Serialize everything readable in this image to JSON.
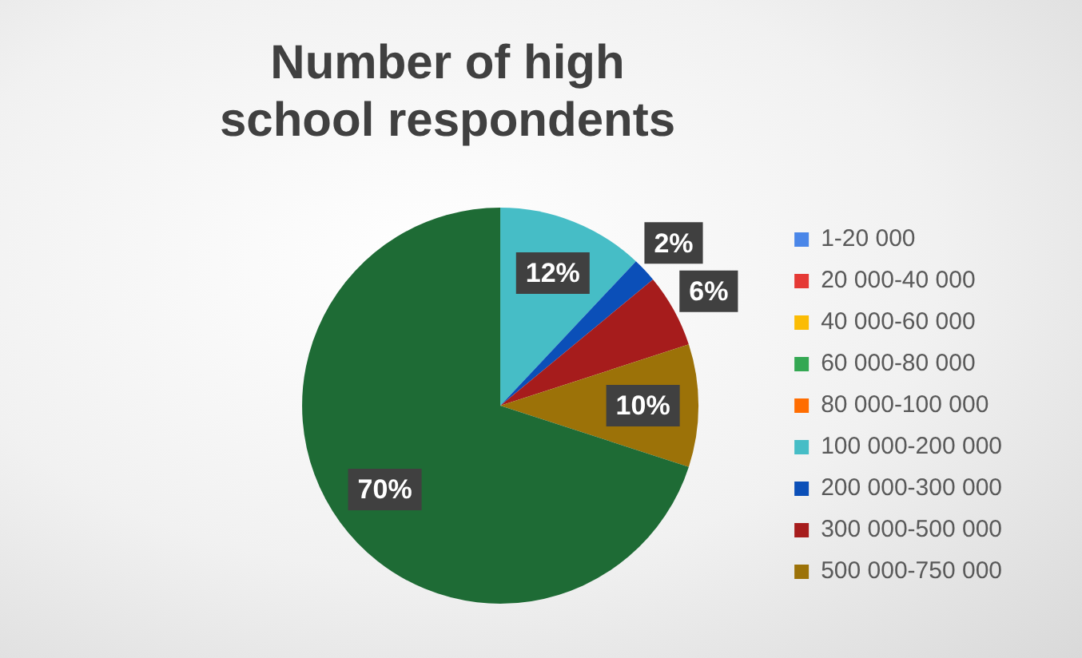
{
  "chart_data": {
    "type": "pie",
    "title": "Number of high school respondents",
    "categories": [
      "1-20 000",
      "20 000-40 000",
      "40 000-60 000",
      "60 000-80 000",
      "80 000-100 000",
      "100 000-200 000",
      "200 000-300 000",
      "300 000-500 000",
      "500 000-750 000",
      null
    ],
    "values": [
      0,
      0,
      0,
      0,
      0,
      12,
      2,
      6,
      10,
      70
    ],
    "value_labels": [
      null,
      null,
      null,
      null,
      null,
      "12%",
      "2%",
      "6%",
      "10%",
      "70%"
    ],
    "colors": [
      "#4a86e8",
      "#e53935",
      "#fbbc04",
      "#34a853",
      "#ff6d01",
      "#46bdc6",
      "#0b4fb8",
      "#a61c1c",
      "#9c7208",
      "#1e6b35"
    ],
    "legend": "right"
  }
}
